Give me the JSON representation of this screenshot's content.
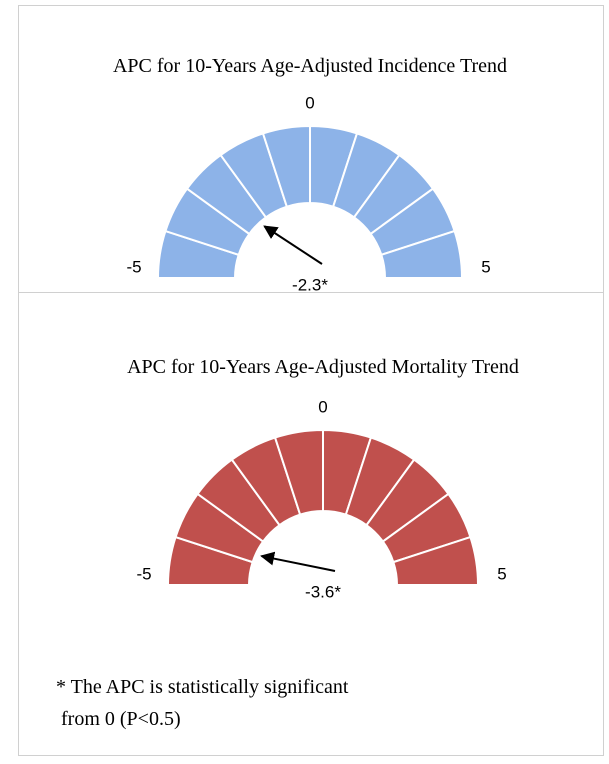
{
  "chart_data": [
    {
      "type": "gauge",
      "title": "APC for 10-Years Age-Adjusted Incidence Trend",
      "values": [
        -2.3
      ],
      "value_labels": [
        "-2.3*"
      ],
      "ylim": [
        -5,
        5
      ],
      "yticks": [
        -5,
        0,
        5
      ],
      "color": "#8db3e8"
    },
    {
      "type": "gauge",
      "title": "APC for 10-Years Age-Adjusted Mortality Trend",
      "values": [
        -3.6
      ],
      "value_labels": [
        "-3.6*"
      ],
      "ylim": [
        -5,
        5
      ],
      "yticks": [
        -5,
        0,
        5
      ],
      "color": "#c0504d"
    }
  ],
  "note": [
    "* The APC is statistically significant",
    " from 0 (P<0.5)"
  ]
}
